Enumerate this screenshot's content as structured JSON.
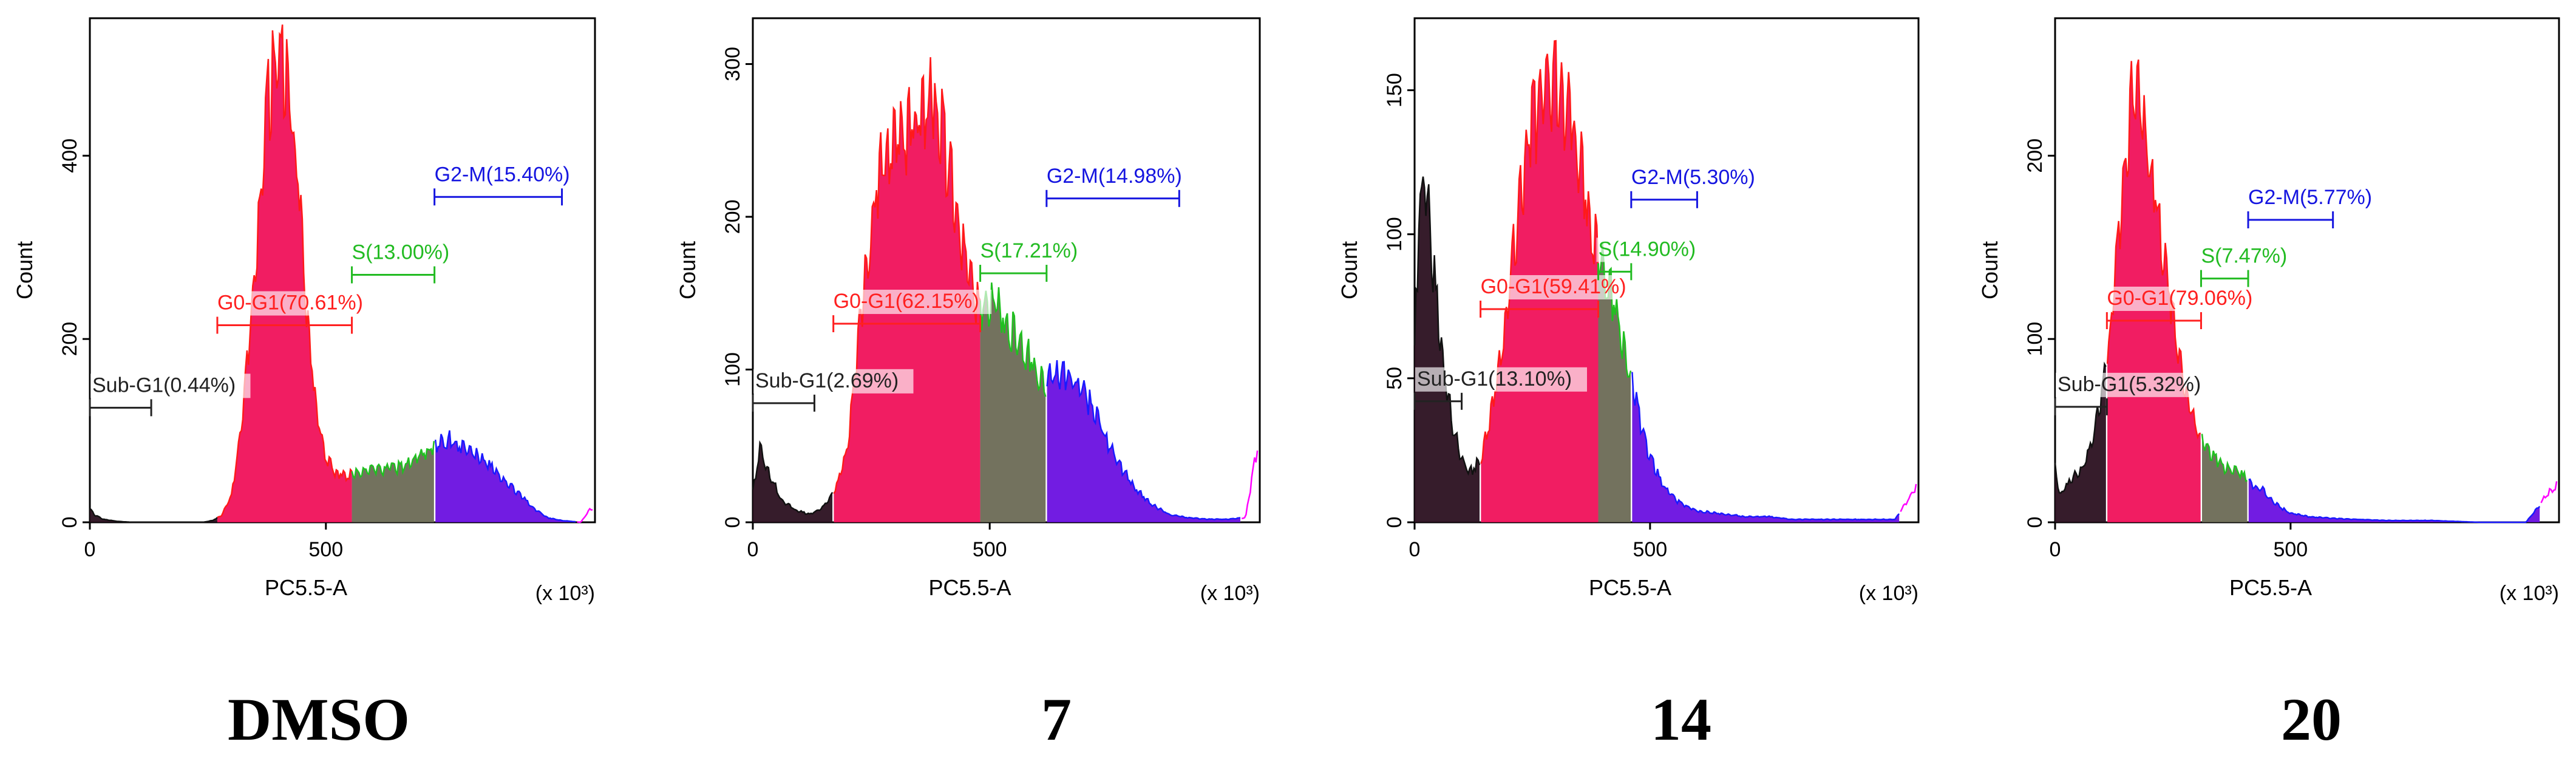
{
  "figure": {
    "panels": [
      {
        "caption": "DMSO"
      },
      {
        "caption": "7"
      },
      {
        "caption": "14"
      },
      {
        "caption": "20"
      }
    ]
  },
  "chart_data": [
    {
      "type": "histogram",
      "panel_label": "DMSO",
      "xlabel": "PC5.5-A",
      "ylabel": "Count",
      "x_multiplier": "(x 10³)",
      "xlim": [
        0,
        1070
      ],
      "ylim": [
        0,
        550
      ],
      "xticks": [
        0,
        500
      ],
      "yticks": [
        0,
        200,
        400
      ],
      "colors": {
        "sub_g1": "#2b1020",
        "g0_g1": "#f0115a",
        "s": "#6b6a55",
        "g2_m": "#6a10e0",
        "sub_g1_label": "#222222",
        "g0_g1_label": "#ff2020",
        "s_label": "#22bb22",
        "g2_m_label": "#1515e0",
        "tail": "#ff00ff"
      },
      "gates": [
        {
          "name": "Sub-G1",
          "label": "Sub-G1(0.44%)",
          "x_start": 0,
          "x_end": 130,
          "y": 125
        },
        {
          "name": "G0-G1",
          "label": "G0-G1(70.61%)",
          "x_start": 270,
          "x_end": 555,
          "y": 215
        },
        {
          "name": "S",
          "label": "S(13.00%)",
          "x_start": 555,
          "x_end": 730,
          "y": 270
        },
        {
          "name": "G2-M",
          "label": "G2-M(15.40%)",
          "x_start": 730,
          "x_end": 1000,
          "y": 355
        }
      ],
      "histogram": {
        "x": [
          0,
          10,
          30,
          60,
          90,
          120,
          150,
          180,
          210,
          240,
          260,
          280,
          300,
          320,
          340,
          360,
          380,
          400,
          420,
          440,
          460,
          480,
          500,
          520,
          540,
          555,
          580,
          620,
          660,
          700,
          730,
          760,
          790,
          820,
          850,
          880,
          910,
          940,
          970,
          1000,
          1040,
          1060
        ],
        "y": [
          15,
          8,
          3,
          1,
          0,
          0,
          0,
          0,
          0,
          0,
          2,
          8,
          30,
          95,
          210,
          340,
          470,
          500,
          480,
          380,
          230,
          120,
          70,
          55,
          52,
          52,
          55,
          58,
          60,
          72,
          85,
          90,
          85,
          75,
          60,
          45,
          30,
          15,
          5,
          2,
          0,
          15
        ]
      }
    },
    {
      "type": "histogram",
      "panel_label": "7",
      "xlabel": "PC5.5-A",
      "ylabel": "Count",
      "x_multiplier": "(x 10³)",
      "xlim": [
        0,
        1070
      ],
      "ylim": [
        0,
        330
      ],
      "xticks": [
        0,
        500
      ],
      "yticks": [
        0,
        100,
        200,
        300
      ],
      "colors": {
        "sub_g1": "#2b1020",
        "g0_g1": "#f0115a",
        "s": "#6b6a55",
        "g2_m": "#6a10e0",
        "sub_g1_label": "#222222",
        "g0_g1_label": "#ff2020",
        "s_label": "#22bb22",
        "g2_m_label": "#1515e0",
        "tail": "#ff00ff"
      },
      "gates": [
        {
          "name": "Sub-G1",
          "label": "Sub-G1(2.69%)",
          "x_start": 0,
          "x_end": 130,
          "y": 78
        },
        {
          "name": "G0-G1",
          "label": "G0-G1(62.15%)",
          "x_start": 170,
          "x_end": 480,
          "y": 130
        },
        {
          "name": "S",
          "label": "S(17.21%)",
          "x_start": 480,
          "x_end": 620,
          "y": 163
        },
        {
          "name": "G2-M",
          "label": "G2-M(14.98%)",
          "x_start": 620,
          "x_end": 900,
          "y": 212
        }
      ],
      "histogram": {
        "x": [
          0,
          15,
          30,
          60,
          90,
          120,
          150,
          180,
          200,
          220,
          240,
          260,
          280,
          300,
          320,
          340,
          360,
          380,
          400,
          420,
          440,
          460,
          480,
          500,
          520,
          540,
          560,
          580,
          600,
          620,
          640,
          660,
          680,
          700,
          720,
          740,
          760,
          800,
          840,
          880,
          920,
          960,
          1000,
          1040,
          1065
        ],
        "y": [
          20,
          50,
          35,
          15,
          8,
          5,
          10,
          25,
          50,
          110,
          170,
          220,
          245,
          260,
          250,
          260,
          272,
          275,
          255,
          220,
          180,
          155,
          140,
          145,
          140,
          128,
          118,
          112,
          98,
          92,
          96,
          95,
          90,
          85,
          72,
          58,
          45,
          25,
          12,
          5,
          3,
          2,
          2,
          3,
          50
        ]
      }
    },
    {
      "type": "histogram",
      "panel_label": "14",
      "xlabel": "PC5.5-A",
      "ylabel": "Count",
      "x_multiplier": "(x 10³)",
      "xlim": [
        0,
        1070
      ],
      "ylim": [
        0,
        175
      ],
      "xticks": [
        0,
        500
      ],
      "yticks": [
        0,
        50,
        100,
        150
      ],
      "colors": {
        "sub_g1": "#2b1020",
        "g0_g1": "#f0115a",
        "s": "#6b6a55",
        "g2_m": "#6a10e0",
        "sub_g1_label": "#222222",
        "g0_g1_label": "#ff2020",
        "s_label": "#22bb22",
        "g2_m_label": "#1515e0",
        "tail": "#ff00ff"
      },
      "gates": [
        {
          "name": "Sub-G1",
          "label": "Sub-G1(13.10%)",
          "x_start": 0,
          "x_end": 100,
          "y": 42
        },
        {
          "name": "G0-G1",
          "label": "G0-G1(59.41%)",
          "x_start": 140,
          "x_end": 390,
          "y": 74
        },
        {
          "name": "S",
          "label": "S(14.90%)",
          "x_start": 390,
          "x_end": 460,
          "y": 87
        },
        {
          "name": "G2-M",
          "label": "G2-M(5.30%)",
          "x_start": 460,
          "x_end": 600,
          "y": 112
        }
      ],
      "histogram": {
        "x": [
          0,
          10,
          20,
          30,
          45,
          60,
          80,
          100,
          120,
          140,
          160,
          180,
          200,
          220,
          240,
          260,
          280,
          300,
          320,
          340,
          360,
          380,
          400,
          420,
          440,
          460,
          480,
          500,
          530,
          560,
          600,
          650,
          700,
          750,
          800,
          850,
          900,
          960,
          1020,
          1065
        ],
        "y": [
          60,
          110,
          120,
          105,
          80,
          55,
          35,
          22,
          18,
          22,
          35,
          55,
          80,
          105,
          130,
          142,
          148,
          152,
          145,
          135,
          118,
          100,
          88,
          78,
          65,
          50,
          35,
          22,
          12,
          7,
          4,
          3,
          2,
          2,
          1,
          1,
          1,
          1,
          1,
          12
        ]
      }
    },
    {
      "type": "histogram",
      "panel_label": "20",
      "xlabel": "PC5.5-A",
      "ylabel": "Count",
      "x_multiplier": "(x 10³)",
      "xlim": [
        0,
        1070
      ],
      "ylim": [
        0,
        275
      ],
      "xticks": [
        0,
        500
      ],
      "yticks": [
        0,
        100,
        200
      ],
      "colors": {
        "sub_g1": "#2b1020",
        "g0_g1": "#f0115a",
        "s": "#6b6a55",
        "g2_m": "#6a10e0",
        "sub_g1_label": "#222222",
        "g0_g1_label": "#ff2020",
        "s_label": "#22bb22",
        "g2_m_label": "#1515e0",
        "tail": "#ff00ff"
      },
      "gates": [
        {
          "name": "Sub-G1",
          "label": "Sub-G1(5.32%)",
          "x_start": 0,
          "x_end": 110,
          "y": 63
        },
        {
          "name": "G0-G1",
          "label": "G0-G1(79.06%)",
          "x_start": 110,
          "x_end": 310,
          "y": 110
        },
        {
          "name": "S",
          "label": "S(7.47%)",
          "x_start": 310,
          "x_end": 410,
          "y": 133
        },
        {
          "name": "G2-M",
          "label": "G2-M(5.77%)",
          "x_start": 410,
          "x_end": 590,
          "y": 165
        }
      ],
      "histogram": {
        "x": [
          0,
          10,
          20,
          40,
          60,
          80,
          100,
          120,
          140,
          160,
          170,
          180,
          200,
          220,
          240,
          260,
          280,
          300,
          320,
          340,
          360,
          380,
          400,
          420,
          440,
          460,
          480,
          500,
          540,
          600,
          700,
          800,
          900,
          1000,
          1060
        ],
        "y": [
          30,
          15,
          18,
          25,
          30,
          45,
          70,
          110,
          170,
          225,
          240,
          230,
          200,
          165,
          130,
          95,
          70,
          50,
          42,
          35,
          30,
          28,
          25,
          20,
          18,
          12,
          8,
          5,
          3,
          2,
          1,
          1,
          0,
          0,
          20
        ]
      }
    }
  ]
}
